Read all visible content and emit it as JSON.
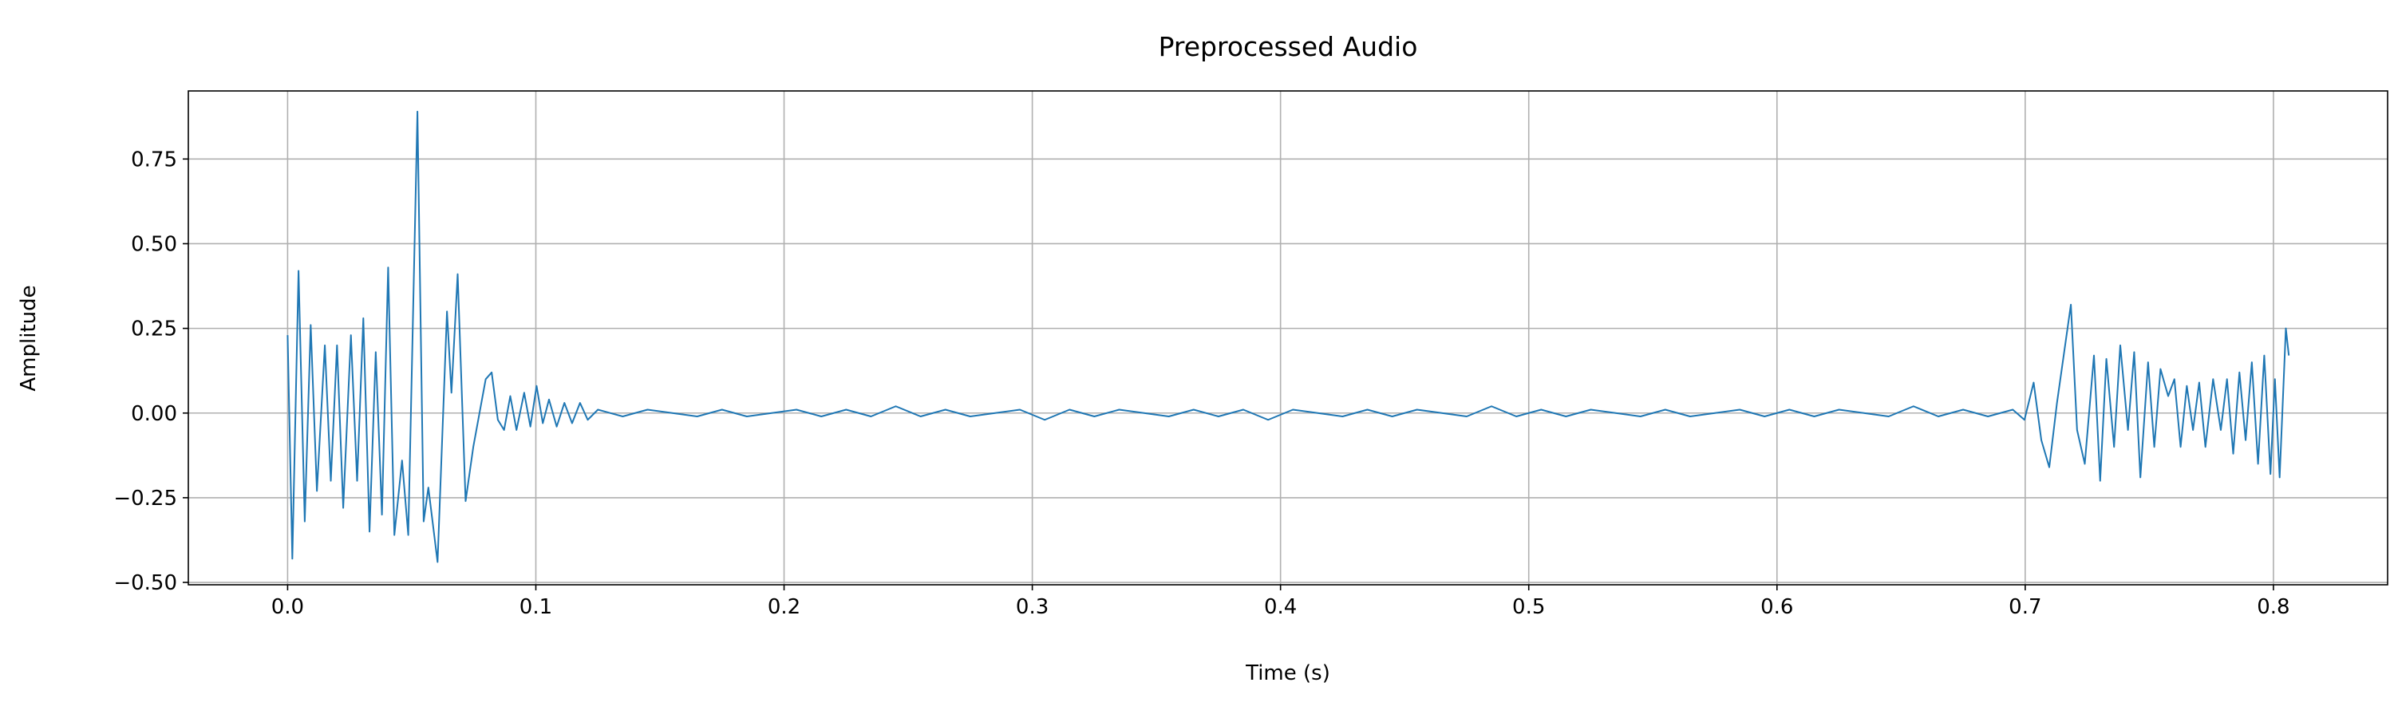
{
  "chart_data": {
    "type": "line",
    "title": "Preprocessed Audio",
    "x_label": "Time (s)",
    "y_label": "Amplitude",
    "color": "#1f77b4",
    "grid": true,
    "xlim": [
      -0.04,
      0.846
    ],
    "ylim": [
      -0.507,
      0.951
    ],
    "xticks": [
      {
        "value": 0,
        "label": "0.0"
      },
      0.1,
      0.2,
      0.3,
      0.4,
      0.5,
      0.6,
      0.7,
      0.8
    ],
    "yticks": [
      {
        "value": -0.5,
        "label": "−0.50"
      },
      {
        "value": -0.25,
        "label": "−0.25"
      },
      {
        "value": 0,
        "label": "0.00"
      },
      0.25,
      {
        "value": 0.5,
        "label": "0.50"
      },
      0.75
    ],
    "x": [
      0,
      0.0019,
      0.0044,
      0.0069,
      0.0093,
      0.0118,
      0.015,
      0.0174,
      0.0199,
      0.0224,
      0.0255,
      0.028,
      0.0305,
      0.033,
      0.0355,
      0.038,
      0.0405,
      0.043,
      0.0461,
      0.0486,
      0.0523,
      0.0548,
      0.0567,
      0.0604,
      0.0642,
      0.066,
      0.0685,
      0.0717,
      0.0748,
      0.0773,
      0.0798,
      0.0822,
      0.0847,
      0.0872,
      0.0897,
      0.0922,
      0.0953,
      0.0978,
      0.1003,
      0.1028,
      0.1053,
      0.1084,
      0.1115,
      0.1146,
      0.1178,
      0.1209,
      0.125,
      0.135,
      0.145,
      0.155,
      0.165,
      0.175,
      0.185,
      0.195,
      0.205,
      0.215,
      0.225,
      0.235,
      0.245,
      0.255,
      0.265,
      0.275,
      0.285,
      0.295,
      0.305,
      0.315,
      0.325,
      0.335,
      0.345,
      0.355,
      0.365,
      0.375,
      0.385,
      0.395,
      0.405,
      0.415,
      0.425,
      0.435,
      0.445,
      0.455,
      0.465,
      0.475,
      0.485,
      0.495,
      0.505,
      0.515,
      0.525,
      0.535,
      0.545,
      0.555,
      0.565,
      0.575,
      0.585,
      0.595,
      0.605,
      0.615,
      0.625,
      0.635,
      0.645,
      0.655,
      0.665,
      0.675,
      0.685,
      0.695,
      0.6997,
      0.7034,
      0.7065,
      0.7097,
      0.7128,
      0.7184,
      0.7209,
      0.724,
      0.7277,
      0.7302,
      0.7327,
      0.7358,
      0.7383,
      0.7414,
      0.7439,
      0.7464,
      0.7495,
      0.752,
      0.7545,
      0.7576,
      0.7601,
      0.7626,
      0.7651,
      0.7676,
      0.7701,
      0.7726,
      0.7757,
      0.7788,
      0.7813,
      0.7838,
      0.7863,
      0.7888,
      0.7913,
      0.7938,
      0.7963,
      0.7988,
      0.8006,
      0.8025,
      0.805,
      0.8062
    ],
    "values": [
      0.23,
      -0.43,
      0.42,
      -0.32,
      0.26,
      -0.23,
      0.2,
      -0.2,
      0.2,
      -0.28,
      0.23,
      -0.2,
      0.28,
      -0.35,
      0.18,
      -0.3,
      0.43,
      -0.36,
      -0.14,
      -0.36,
      0.89,
      -0.32,
      -0.22,
      -0.44,
      0.3,
      0.06,
      0.41,
      -0.26,
      -0.1,
      0,
      0.1,
      0.12,
      -0.02,
      -0.05,
      0.05,
      -0.05,
      0.06,
      -0.04,
      0.08,
      -0.03,
      0.04,
      -0.04,
      0.03,
      -0.03,
      0.03,
      -0.02,
      0.01,
      -0.01,
      0.01,
      0.0,
      -0.01,
      0.01,
      -0.01,
      0.0,
      0.01,
      -0.01,
      0.01,
      -0.01,
      0.02,
      -0.01,
      0.01,
      -0.01,
      0.0,
      0.01,
      -0.02,
      0.01,
      -0.01,
      0.01,
      0.0,
      -0.01,
      0.01,
      -0.01,
      0.01,
      -0.02,
      0.01,
      0.0,
      -0.01,
      0.01,
      -0.01,
      0.01,
      0.0,
      -0.01,
      0.02,
      -0.01,
      0.01,
      -0.01,
      0.01,
      0.0,
      -0.01,
      0.01,
      -0.01,
      0.0,
      0.01,
      -0.01,
      0.01,
      -0.01,
      0.01,
      0.0,
      -0.01,
      0.02,
      -0.01,
      0.01,
      -0.01,
      0.01,
      -0.02,
      0.09,
      -0.08,
      -0.16,
      0.03,
      0.32,
      -0.05,
      -0.15,
      0.17,
      -0.2,
      0.16,
      -0.1,
      0.2,
      -0.05,
      0.18,
      -0.19,
      0.15,
      -0.1,
      0.13,
      0.05,
      0.1,
      -0.1,
      0.08,
      -0.05,
      0.09,
      -0.1,
      0.1,
      -0.05,
      0.1,
      -0.12,
      0.12,
      -0.08,
      0.15,
      -0.15,
      0.17,
      -0.18,
      0.1,
      -0.19,
      0.25,
      0.17
    ]
  }
}
